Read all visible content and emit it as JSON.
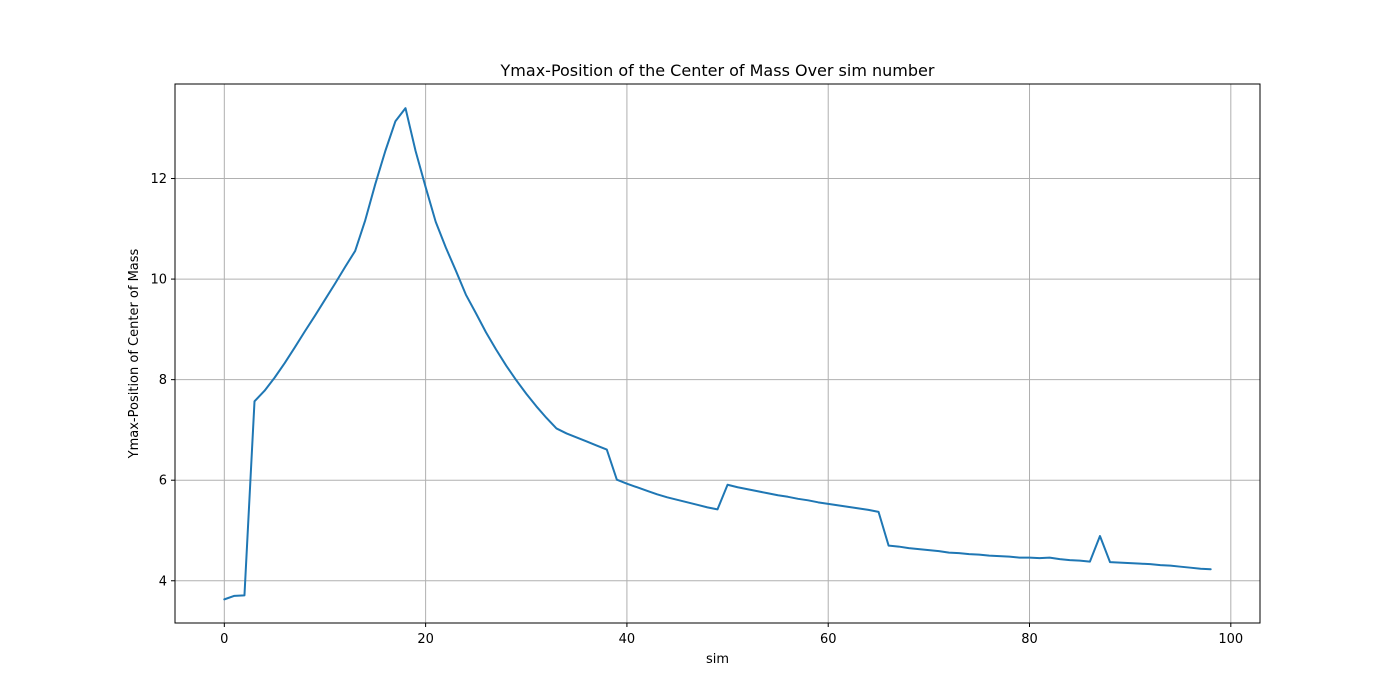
{
  "chart_data": {
    "type": "line",
    "title": "Ymax-Position of the Center of Mass Over sim number",
    "xlabel": "sim",
    "ylabel": "Ymax-Position of Center of Mass",
    "xlim": [
      -4.9,
      102.9
    ],
    "ylim": [
      3.16,
      13.88
    ],
    "xticks": [
      0,
      20,
      40,
      60,
      80,
      100
    ],
    "yticks": [
      4,
      6,
      8,
      10,
      12
    ],
    "grid": true,
    "line_color": "#1f77b4",
    "series": [
      {
        "x": [
          0,
          1,
          2,
          3,
          4,
          5,
          6,
          7,
          8,
          9,
          10,
          11,
          12,
          13,
          14,
          15,
          16,
          17,
          18,
          19,
          20,
          21,
          22,
          23,
          24,
          25,
          26,
          27,
          28,
          29,
          30,
          31,
          32,
          33,
          34,
          35,
          36,
          37,
          38,
          39,
          40,
          41,
          42,
          43,
          44,
          45,
          46,
          47,
          48,
          49,
          50,
          51,
          52,
          53,
          54,
          55,
          56,
          57,
          58,
          59,
          60,
          61,
          62,
          63,
          64,
          65,
          66,
          67,
          68,
          69,
          70,
          71,
          72,
          73,
          74,
          75,
          76,
          77,
          78,
          79,
          80,
          81,
          82,
          83,
          84,
          85,
          86,
          87,
          88,
          89,
          90,
          91,
          92,
          93,
          94,
          95,
          96,
          97,
          98
        ],
        "y": [
          3.63,
          3.7,
          3.71,
          7.57,
          7.78,
          8.04,
          8.33,
          8.64,
          8.96,
          9.27,
          9.59,
          9.91,
          10.24,
          10.56,
          11.17,
          11.89,
          12.55,
          13.14,
          13.4,
          12.55,
          11.83,
          11.14,
          10.63,
          10.17,
          9.69,
          9.32,
          8.94,
          8.6,
          8.28,
          7.99,
          7.72,
          7.47,
          7.24,
          7.03,
          6.93,
          6.85,
          6.77,
          6.69,
          6.61,
          6.01,
          5.93,
          5.86,
          5.79,
          5.72,
          5.66,
          5.61,
          5.56,
          5.51,
          5.46,
          5.42,
          5.91,
          5.86,
          5.82,
          5.78,
          5.74,
          5.7,
          5.67,
          5.63,
          5.6,
          5.56,
          5.53,
          5.5,
          5.47,
          5.44,
          5.41,
          5.37,
          4.7,
          4.68,
          4.65,
          4.63,
          4.61,
          4.59,
          4.56,
          4.55,
          4.53,
          4.52,
          4.5,
          4.49,
          4.48,
          4.46,
          4.46,
          4.45,
          4.46,
          4.43,
          4.41,
          4.4,
          4.38,
          4.89,
          4.37,
          4.36,
          4.35,
          4.34,
          4.33,
          4.31,
          4.3,
          4.28,
          4.26,
          4.24,
          4.23
        ]
      }
    ]
  }
}
